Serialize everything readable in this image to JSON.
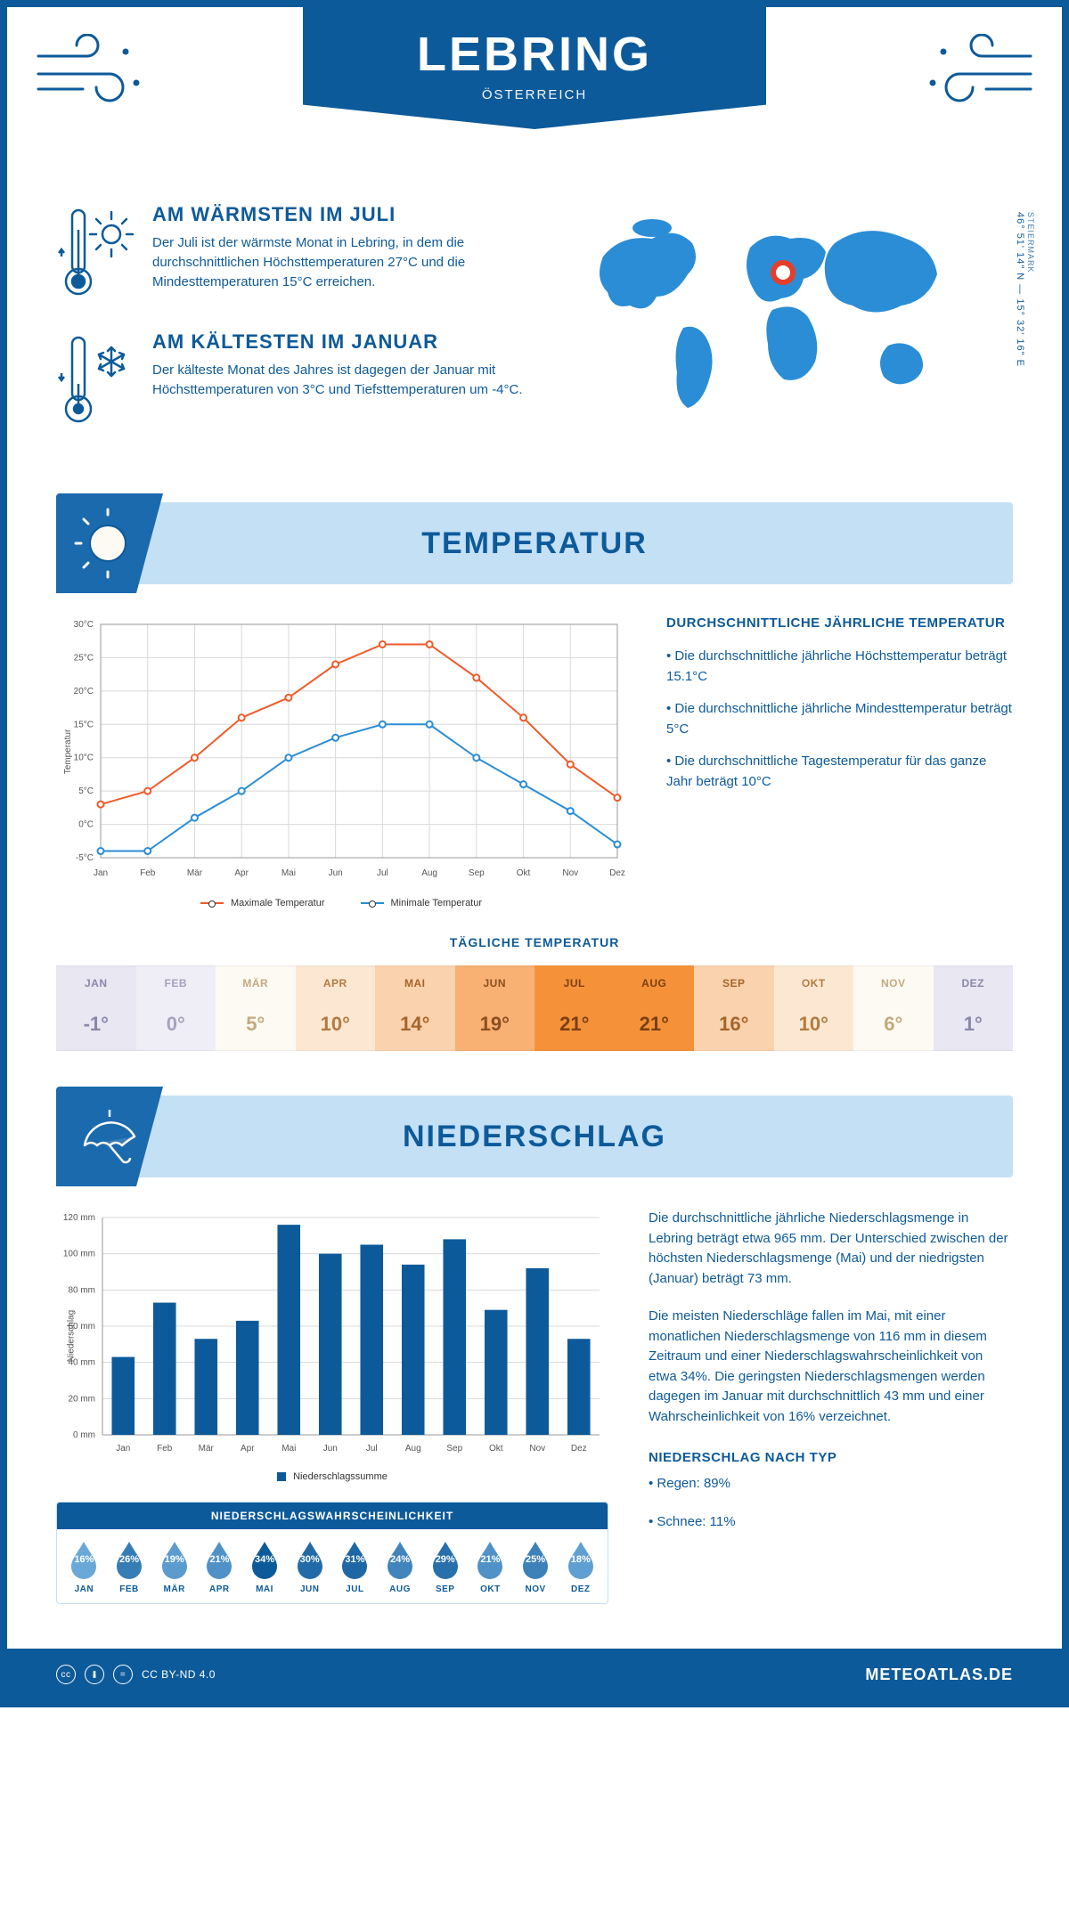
{
  "colors": {
    "primary": "#0d5a9a",
    "primary_light": "#c4e0f5",
    "accent_orange": "#f05a28",
    "accent_blue": "#2a8dd6",
    "marker_red": "#e63e2b",
    "white": "#ffffff",
    "grid": "#d8d8d8",
    "text_grey": "#555555"
  },
  "header": {
    "title": "LEBRING",
    "subtitle": "ÖSTERREICH"
  },
  "location": {
    "region": "STEIERMARK",
    "coords": "46° 51' 14\" N — 15° 32' 16\" E"
  },
  "overview": {
    "warm": {
      "heading": "AM WÄRMSTEN IM JULI",
      "text": "Der Juli ist der wärmste Monat in Lebring, in dem die durchschnittlichen Höchsttemperaturen 27°C und die Mindesttemperaturen 15°C erreichen."
    },
    "cold": {
      "heading": "AM KÄLTESTEN IM JANUAR",
      "text": "Der kälteste Monat des Jahres ist dagegen der Januar mit Höchsttemperaturen von 3°C und Tiefsttemperaturen um -4°C."
    }
  },
  "sections": {
    "temp": "TEMPERATUR",
    "precip": "NIEDERSCHLAG"
  },
  "temp_chart": {
    "type": "line",
    "y_label": "Temperatur",
    "y_min": -5,
    "y_max": 30,
    "y_step": 5,
    "y_suffix": "°C",
    "months": [
      "Jan",
      "Feb",
      "Mär",
      "Apr",
      "Mai",
      "Jun",
      "Jul",
      "Aug",
      "Sep",
      "Okt",
      "Nov",
      "Dez"
    ],
    "series": [
      {
        "name": "Maximale Temperatur",
        "color": "#f05a28",
        "values": [
          3,
          5,
          10,
          16,
          19,
          24,
          27,
          27,
          22,
          16,
          9,
          4
        ]
      },
      {
        "name": "Minimale Temperatur",
        "color": "#2a8dd6",
        "values": [
          -4,
          -4,
          1,
          5,
          10,
          13,
          15,
          15,
          10,
          6,
          2,
          -3
        ]
      }
    ],
    "legend": {
      "max": "Maximale Temperatur",
      "min": "Minimale Temperatur"
    }
  },
  "temp_facts": {
    "heading": "DURCHSCHNITTLICHE JÄHRLICHE TEMPERATUR",
    "lines": [
      "• Die durchschnittliche jährliche Höchsttemperatur beträgt 15.1°C",
      "• Die durchschnittliche jährliche Mindesttemperatur beträgt 5°C",
      "• Die durchschnittliche Tagestemperatur für das ganze Jahr beträgt 10°C"
    ]
  },
  "daily_temp": {
    "heading": "TÄGLICHE TEMPERATUR",
    "months": [
      "JAN",
      "FEB",
      "MÄR",
      "APR",
      "MAI",
      "JUN",
      "JUL",
      "AUG",
      "SEP",
      "OKT",
      "NOV",
      "DEZ"
    ],
    "values": [
      "-1°",
      "0°",
      "5°",
      "10°",
      "14°",
      "19°",
      "21°",
      "21°",
      "16°",
      "10°",
      "6°",
      "1°"
    ],
    "cell_bg": [
      "#e8e7f2",
      "#efeef6",
      "#fdfaf4",
      "#fce8d2",
      "#fad2ae",
      "#f8b073",
      "#f59239",
      "#f59239",
      "#fad2ae",
      "#fce8d2",
      "#fdfaf4",
      "#e8e7f2"
    ],
    "cell_fg": [
      "#8a88a8",
      "#a4a2bd",
      "#c4a97c",
      "#b37a3f",
      "#a5652a",
      "#8a4f1f",
      "#7a3f12",
      "#7a3f12",
      "#a5652a",
      "#b37a3f",
      "#c4a97c",
      "#8a88a8"
    ]
  },
  "precip_chart": {
    "type": "bar",
    "y_label": "Niederschlag",
    "y_min": 0,
    "y_max": 120,
    "y_step": 20,
    "y_suffix": " mm",
    "months": [
      "Jan",
      "Feb",
      "Mär",
      "Apr",
      "Mai",
      "Jun",
      "Jul",
      "Aug",
      "Sep",
      "Okt",
      "Nov",
      "Dez"
    ],
    "values": [
      43,
      73,
      53,
      63,
      116,
      100,
      105,
      94,
      108,
      69,
      92,
      53
    ],
    "bar_color": "#0d5a9a",
    "legend": "Niederschlagssumme"
  },
  "precip_text": {
    "p1": "Die durchschnittliche jährliche Niederschlagsmenge in Lebring beträgt etwa 965 mm. Der Unterschied zwischen der höchsten Niederschlagsmenge (Mai) und der niedrigsten (Januar) beträgt 73 mm.",
    "p2": "Die meisten Niederschläge fallen im Mai, mit einer monatlichen Niederschlagsmenge von 116 mm in diesem Zeitraum und einer Niederschlagswahrscheinlichkeit von etwa 34%. Die geringsten Niederschlagsmengen werden dagegen im Januar mit durchschnittlich 43 mm und einer Wahrscheinlichkeit von 16% verzeichnet.",
    "type_heading": "NIEDERSCHLAG NACH TYP",
    "type_lines": [
      "• Regen: 89%",
      "• Schnee: 11%"
    ]
  },
  "prob": {
    "heading": "NIEDERSCHLAGSWAHRSCHEINLICHKEIT",
    "months": [
      "JAN",
      "FEB",
      "MÄR",
      "APR",
      "MAI",
      "JUN",
      "JUL",
      "AUG",
      "SEP",
      "OKT",
      "NOV",
      "DEZ"
    ],
    "percent": [
      "16%",
      "26%",
      "19%",
      "21%",
      "34%",
      "30%",
      "31%",
      "24%",
      "29%",
      "21%",
      "25%",
      "18%"
    ],
    "pvals": [
      16,
      26,
      19,
      21,
      34,
      30,
      31,
      24,
      29,
      21,
      25,
      18
    ],
    "colors_low": "#6aa8d8",
    "colors_high": "#0d5a9a"
  },
  "footer": {
    "license": "CC BY-ND 4.0",
    "brand": "METEOATLAS.DE"
  }
}
